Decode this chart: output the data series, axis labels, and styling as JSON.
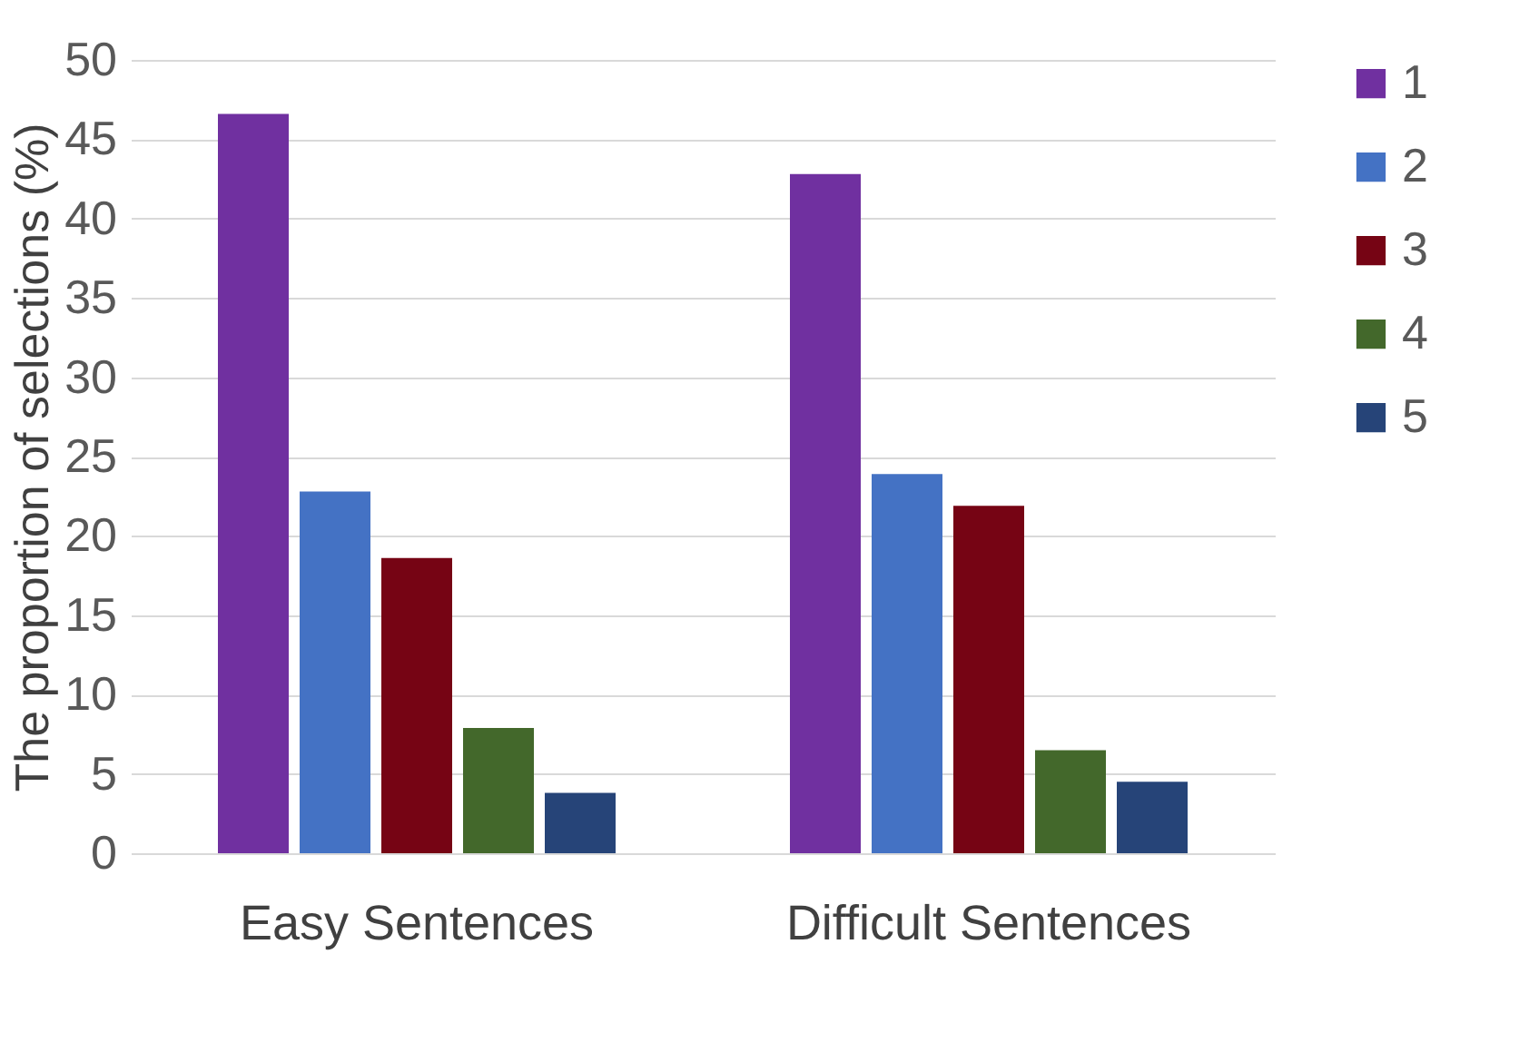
{
  "chart_data": {
    "type": "bar",
    "ylabel": "The proportion of selections (%)",
    "categories": [
      "Easy Sentences",
      "Difficult Sentences"
    ],
    "series": [
      {
        "name": "1",
        "color": "#7030a0",
        "values": [
          46.6,
          42.8
        ]
      },
      {
        "name": "2",
        "color": "#4472c4",
        "values": [
          22.8,
          23.9
        ]
      },
      {
        "name": "3",
        "color": "#760414",
        "values": [
          18.6,
          21.9
        ]
      },
      {
        "name": "4",
        "color": "#43682b",
        "values": [
          7.9,
          6.5
        ]
      },
      {
        "name": "5",
        "color": "#264478",
        "values": [
          3.8,
          4.5
        ]
      }
    ],
    "ylim": [
      0,
      50
    ],
    "yticks": [
      0,
      5,
      10,
      15,
      20,
      25,
      30,
      35,
      40,
      45,
      50
    ],
    "grid": "y",
    "legend": "right"
  }
}
